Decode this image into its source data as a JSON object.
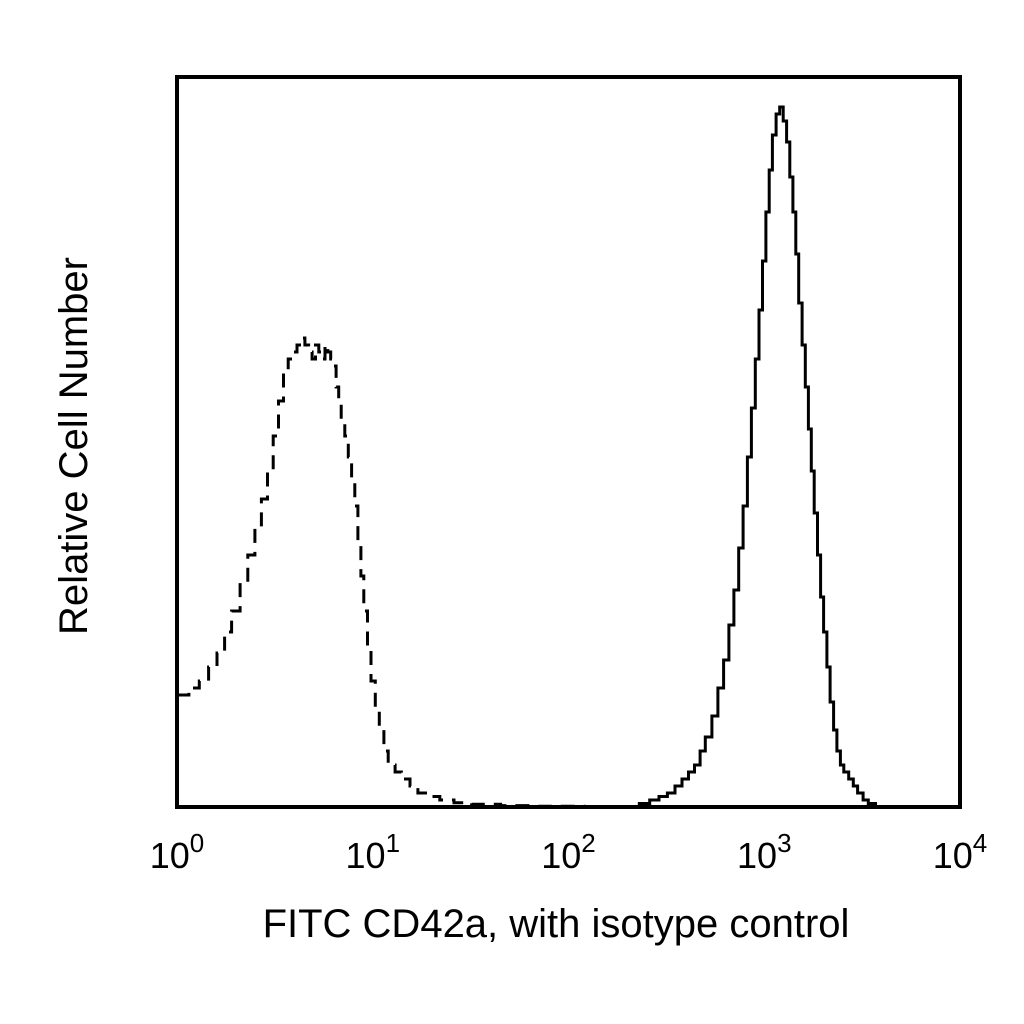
{
  "chart_data": {
    "type": "line",
    "title": "",
    "xlabel": "FITC CD42a, with isotype control",
    "ylabel": "Relative Cell Number",
    "x_scale": "log",
    "xlim": [
      1,
      10000
    ],
    "ylim": [
      0,
      100
    ],
    "grid": false,
    "legend": "none",
    "x_ticks": [
      {
        "base": "10",
        "exp": "0",
        "value": 1
      },
      {
        "base": "10",
        "exp": "1",
        "value": 10
      },
      {
        "base": "10",
        "exp": "2",
        "value": 100
      },
      {
        "base": "10",
        "exp": "3",
        "value": 1000
      },
      {
        "base": "10",
        "exp": "4",
        "value": 10000
      }
    ],
    "series": [
      {
        "style": "dashed",
        "color": "#000000",
        "x": [
          1.0,
          1.15,
          1.3,
          1.45,
          1.6,
          1.75,
          1.9,
          2.1,
          2.3,
          2.5,
          2.7,
          2.9,
          3.1,
          3.3,
          3.5,
          3.7,
          3.9,
          4.1,
          4.3,
          4.5,
          4.7,
          4.9,
          5.1,
          5.3,
          5.5,
          5.7,
          5.9,
          6.1,
          6.3,
          6.5,
          6.7,
          6.9,
          7.2,
          7.5,
          7.8,
          8.1,
          8.4,
          8.7,
          9.0,
          9.4,
          9.8,
          10.3,
          10.8,
          11.4,
          12.0,
          13.0,
          14.0,
          15.5,
          17.0,
          19.0,
          22.0,
          26.0,
          32.0,
          45.0,
          70.0,
          120.0
        ],
        "y": [
          16,
          17,
          18,
          20,
          22,
          25,
          28,
          32,
          36,
          40,
          44,
          48,
          53,
          58,
          62,
          64,
          65,
          66,
          67,
          66,
          65,
          64,
          66,
          65,
          64,
          66,
          65,
          64,
          63,
          60,
          58,
          55,
          53,
          50,
          47,
          43,
          38,
          33,
          28,
          23,
          18,
          14,
          11,
          8,
          6,
          5,
          4,
          3,
          2,
          1.5,
          1,
          0.6,
          0.4,
          0.2,
          0.1,
          0
        ]
      },
      {
        "style": "solid",
        "color": "#000000",
        "x": [
          200,
          230,
          260,
          290,
          320,
          350,
          380,
          410,
          440,
          470,
          500,
          540,
          580,
          620,
          660,
          700,
          740,
          780,
          820,
          860,
          900,
          940,
          980,
          1020,
          1060,
          1100,
          1150,
          1200,
          1250,
          1300,
          1350,
          1400,
          1450,
          1500,
          1560,
          1620,
          1680,
          1740,
          1800,
          1870,
          1940,
          2010,
          2090,
          2170,
          2260,
          2350,
          2450,
          2550,
          2700,
          2850,
          3000,
          3200,
          3400,
          3700
        ],
        "y": [
          0,
          0.5,
          1,
          1.5,
          2,
          3,
          4,
          5,
          6,
          8,
          10,
          13,
          17,
          21,
          26,
          31,
          37,
          43,
          50,
          57,
          64,
          71,
          78,
          85,
          91,
          96,
          99,
          100,
          98,
          95,
          90,
          85,
          79,
          72,
          66,
          60,
          54,
          48,
          42,
          36,
          30,
          25,
          20,
          15,
          11,
          8,
          6,
          5,
          4,
          3,
          2,
          1,
          0.5,
          0
        ]
      }
    ]
  }
}
